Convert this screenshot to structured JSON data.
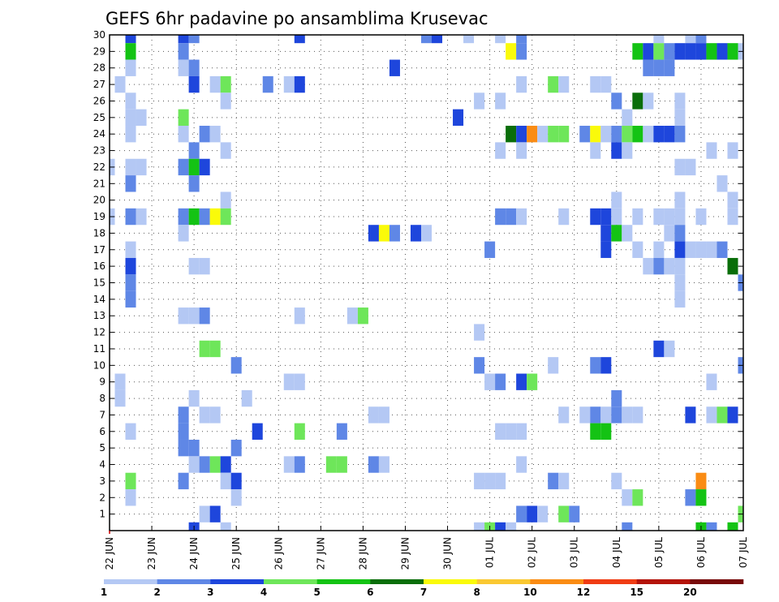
{
  "chart_data": {
    "type": "heatmap",
    "title": "GEFS 6hr padavine po ansamblima Krusevac",
    "xlabel": "",
    "ylabel": "",
    "x_tick_labels": [
      "22 JUN",
      "23 JUN",
      "24 JUN",
      "25 JUN",
      "26 JUN",
      "27 JUN",
      "28 JUN",
      "29 JUN",
      "30 JUN",
      "01 JUL",
      "02 JUL",
      "03 JUL",
      "04 JUL",
      "05 JUL",
      "06 JUL",
      "07 JUL"
    ],
    "y_tick_labels": [
      "1",
      "2",
      "3",
      "4",
      "5",
      "6",
      "7",
      "8",
      "9",
      "10",
      "11",
      "12",
      "13",
      "14",
      "15",
      "16",
      "17",
      "18",
      "19",
      "20",
      "21",
      "22",
      "23",
      "24",
      "25",
      "26",
      "27",
      "28",
      "29",
      "30"
    ],
    "x_range_steps": [
      0,
      60
    ],
    "y_range_members": [
      0,
      30
    ],
    "grid": true,
    "colorbar": {
      "labels": [
        "1",
        "2",
        "3",
        "4",
        "5",
        "6",
        "7",
        "8",
        "10",
        "12",
        "15",
        "20"
      ],
      "colors": [
        "#b4c8f4",
        "#5f87e6",
        "#1e46dc",
        "#6ee65a",
        "#14c314",
        "#0a6e0a",
        "#fafa0a",
        "#fac832",
        "#fa8c14",
        "#f03c14",
        "#b4140a",
        "#780a0a"
      ]
    },
    "cells": [
      [
        30,
        2,
        3
      ],
      [
        30,
        7,
        3
      ],
      [
        30,
        8,
        2
      ],
      [
        30,
        18,
        3
      ],
      [
        30,
        30,
        2
      ],
      [
        30,
        31,
        3
      ],
      [
        30,
        34,
        1
      ],
      [
        30,
        37,
        1
      ],
      [
        30,
        39,
        2
      ],
      [
        30,
        52,
        1
      ],
      [
        30,
        55,
        1
      ],
      [
        30,
        56,
        2
      ],
      [
        29,
        2,
        5
      ],
      [
        29,
        7,
        2
      ],
      [
        29,
        38,
        7
      ],
      [
        29,
        39,
        2
      ],
      [
        29,
        50,
        5
      ],
      [
        29,
        51,
        3
      ],
      [
        29,
        52,
        4
      ],
      [
        29,
        53,
        2
      ],
      [
        29,
        54,
        3
      ],
      [
        29,
        55,
        3
      ],
      [
        29,
        56,
        3
      ],
      [
        29,
        57,
        5
      ],
      [
        29,
        58,
        3
      ],
      [
        29,
        59,
        5
      ],
      [
        29,
        60,
        1
      ],
      [
        28,
        2,
        1
      ],
      [
        28,
        7,
        1
      ],
      [
        28,
        8,
        2
      ],
      [
        28,
        27,
        3
      ],
      [
        28,
        51,
        2
      ],
      [
        28,
        52,
        2
      ],
      [
        28,
        53,
        2
      ],
      [
        27,
        1,
        1
      ],
      [
        27,
        8,
        3
      ],
      [
        27,
        10,
        1
      ],
      [
        27,
        11,
        4
      ],
      [
        27,
        15,
        2
      ],
      [
        27,
        17,
        1
      ],
      [
        27,
        18,
        3
      ],
      [
        27,
        39,
        1
      ],
      [
        27,
        42,
        4
      ],
      [
        27,
        43,
        1
      ],
      [
        27,
        46,
        1
      ],
      [
        27,
        47,
        1
      ],
      [
        26,
        2,
        1
      ],
      [
        26,
        11,
        1
      ],
      [
        26,
        35,
        1
      ],
      [
        26,
        37,
        1
      ],
      [
        26,
        48,
        2
      ],
      [
        26,
        50,
        6
      ],
      [
        26,
        51,
        1
      ],
      [
        26,
        54,
        1
      ],
      [
        25,
        2,
        1
      ],
      [
        25,
        3,
        1
      ],
      [
        25,
        7,
        4
      ],
      [
        25,
        33,
        3
      ],
      [
        25,
        49,
        1
      ],
      [
        25,
        54,
        1
      ],
      [
        24,
        2,
        1
      ],
      [
        24,
        7,
        1
      ],
      [
        24,
        9,
        2
      ],
      [
        24,
        10,
        1
      ],
      [
        24,
        38,
        6
      ],
      [
        24,
        39,
        3
      ],
      [
        24,
        40,
        9
      ],
      [
        24,
        41,
        1
      ],
      [
        24,
        42,
        4
      ],
      [
        24,
        43,
        4
      ],
      [
        24,
        45,
        2
      ],
      [
        24,
        46,
        7
      ],
      [
        24,
        47,
        1
      ],
      [
        24,
        48,
        2
      ],
      [
        24,
        49,
        4
      ],
      [
        24,
        50,
        5
      ],
      [
        24,
        51,
        1
      ],
      [
        24,
        52,
        3
      ],
      [
        24,
        53,
        3
      ],
      [
        24,
        54,
        2
      ],
      [
        23,
        8,
        2
      ],
      [
        23,
        11,
        1
      ],
      [
        23,
        37,
        1
      ],
      [
        23,
        39,
        1
      ],
      [
        23,
        46,
        1
      ],
      [
        23,
        48,
        3
      ],
      [
        23,
        49,
        1
      ],
      [
        23,
        57,
        1
      ],
      [
        23,
        59,
        1
      ],
      [
        22,
        0,
        1
      ],
      [
        22,
        2,
        1
      ],
      [
        22,
        3,
        1
      ],
      [
        22,
        7,
        2
      ],
      [
        22,
        8,
        5
      ],
      [
        22,
        9,
        3
      ],
      [
        22,
        54,
        1
      ],
      [
        22,
        55,
        1
      ],
      [
        21,
        2,
        2
      ],
      [
        21,
        8,
        2
      ],
      [
        21,
        58,
        1
      ],
      [
        20,
        11,
        1
      ],
      [
        20,
        48,
        1
      ],
      [
        20,
        54,
        1
      ],
      [
        20,
        59,
        1
      ],
      [
        19,
        0,
        1
      ],
      [
        19,
        2,
        2
      ],
      [
        19,
        3,
        1
      ],
      [
        19,
        7,
        2
      ],
      [
        19,
        8,
        5
      ],
      [
        19,
        9,
        2
      ],
      [
        19,
        10,
        7
      ],
      [
        19,
        11,
        4
      ],
      [
        19,
        37,
        2
      ],
      [
        19,
        38,
        2
      ],
      [
        19,
        39,
        1
      ],
      [
        19,
        43,
        1
      ],
      [
        19,
        46,
        3
      ],
      [
        19,
        47,
        3
      ],
      [
        19,
        48,
        1
      ],
      [
        19,
        50,
        1
      ],
      [
        19,
        52,
        1
      ],
      [
        19,
        53,
        1
      ],
      [
        19,
        54,
        1
      ],
      [
        19,
        56,
        1
      ],
      [
        19,
        59,
        1
      ],
      [
        18,
        7,
        1
      ],
      [
        18,
        25,
        3
      ],
      [
        18,
        26,
        7
      ],
      [
        18,
        27,
        2
      ],
      [
        18,
        29,
        3
      ],
      [
        18,
        30,
        1
      ],
      [
        18,
        47,
        3
      ],
      [
        18,
        48,
        5
      ],
      [
        18,
        49,
        1
      ],
      [
        18,
        53,
        1
      ],
      [
        18,
        54,
        2
      ],
      [
        17,
        2,
        1
      ],
      [
        17,
        36,
        2
      ],
      [
        17,
        47,
        3
      ],
      [
        17,
        50,
        1
      ],
      [
        17,
        52,
        1
      ],
      [
        17,
        54,
        3
      ],
      [
        17,
        55,
        1
      ],
      [
        17,
        56,
        1
      ],
      [
        17,
        57,
        1
      ],
      [
        17,
        58,
        2
      ],
      [
        16,
        2,
        3
      ],
      [
        16,
        8,
        1
      ],
      [
        16,
        9,
        1
      ],
      [
        16,
        51,
        1
      ],
      [
        16,
        52,
        2
      ],
      [
        16,
        53,
        1
      ],
      [
        16,
        54,
        1
      ],
      [
        16,
        59,
        6
      ],
      [
        15,
        2,
        2
      ],
      [
        15,
        54,
        1
      ],
      [
        15,
        60,
        2
      ],
      [
        14,
        2,
        2
      ],
      [
        14,
        54,
        1
      ],
      [
        13,
        7,
        1
      ],
      [
        13,
        8,
        1
      ],
      [
        13,
        9,
        2
      ],
      [
        13,
        18,
        1
      ],
      [
        13,
        23,
        1
      ],
      [
        13,
        24,
        4
      ],
      [
        12,
        35,
        1
      ],
      [
        11,
        9,
        4
      ],
      [
        11,
        10,
        4
      ],
      [
        11,
        52,
        3
      ],
      [
        11,
        53,
        1
      ],
      [
        10,
        12,
        2
      ],
      [
        10,
        35,
        2
      ],
      [
        10,
        42,
        1
      ],
      [
        10,
        46,
        2
      ],
      [
        10,
        47,
        3
      ],
      [
        10,
        60,
        2
      ],
      [
        9,
        1,
        1
      ],
      [
        9,
        17,
        1
      ],
      [
        9,
        18,
        1
      ],
      [
        9,
        36,
        1
      ],
      [
        9,
        37,
        2
      ],
      [
        9,
        39,
        3
      ],
      [
        9,
        40,
        4
      ],
      [
        9,
        57,
        1
      ],
      [
        8,
        1,
        1
      ],
      [
        8,
        8,
        1
      ],
      [
        8,
        13,
        1
      ],
      [
        8,
        48,
        2
      ],
      [
        7,
        7,
        2
      ],
      [
        7,
        9,
        1
      ],
      [
        7,
        10,
        1
      ],
      [
        7,
        25,
        1
      ],
      [
        7,
        26,
        1
      ],
      [
        7,
        43,
        1
      ],
      [
        7,
        45,
        1
      ],
      [
        7,
        46,
        2
      ],
      [
        7,
        47,
        1
      ],
      [
        7,
        48,
        2
      ],
      [
        7,
        49,
        1
      ],
      [
        7,
        50,
        1
      ],
      [
        7,
        55,
        3
      ],
      [
        7,
        57,
        1
      ],
      [
        7,
        58,
        4
      ],
      [
        7,
        59,
        3
      ],
      [
        6,
        2,
        1
      ],
      [
        6,
        7,
        2
      ],
      [
        6,
        14,
        3
      ],
      [
        6,
        18,
        4
      ],
      [
        6,
        22,
        2
      ],
      [
        6,
        37,
        1
      ],
      [
        6,
        38,
        1
      ],
      [
        6,
        39,
        1
      ],
      [
        6,
        46,
        5
      ],
      [
        6,
        47,
        5
      ],
      [
        5,
        7,
        2
      ],
      [
        5,
        8,
        2
      ],
      [
        5,
        12,
        2
      ],
      [
        4,
        8,
        1
      ],
      [
        4,
        9,
        2
      ],
      [
        4,
        10,
        4
      ],
      [
        4,
        11,
        3
      ],
      [
        4,
        17,
        1
      ],
      [
        4,
        18,
        2
      ],
      [
        4,
        21,
        4
      ],
      [
        4,
        22,
        4
      ],
      [
        4,
        25,
        2
      ],
      [
        4,
        26,
        1
      ],
      [
        4,
        39,
        1
      ],
      [
        3,
        2,
        4
      ],
      [
        3,
        7,
        2
      ],
      [
        3,
        11,
        1
      ],
      [
        3,
        12,
        3
      ],
      [
        3,
        35,
        1
      ],
      [
        3,
        36,
        1
      ],
      [
        3,
        37,
        1
      ],
      [
        3,
        42,
        2
      ],
      [
        3,
        43,
        1
      ],
      [
        3,
        48,
        1
      ],
      [
        3,
        56,
        9
      ],
      [
        2,
        2,
        1
      ],
      [
        2,
        12,
        1
      ],
      [
        2,
        49,
        1
      ],
      [
        2,
        50,
        4
      ],
      [
        2,
        55,
        2
      ],
      [
        2,
        56,
        5
      ],
      [
        1,
        9,
        1
      ],
      [
        1,
        10,
        3
      ],
      [
        1,
        39,
        2
      ],
      [
        1,
        40,
        3
      ],
      [
        1,
        41,
        1
      ],
      [
        1,
        43,
        4
      ],
      [
        1,
        44,
        2
      ],
      [
        1,
        60,
        4
      ],
      [
        0,
        8,
        3
      ],
      [
        0,
        11,
        1
      ],
      [
        0,
        35,
        1
      ],
      [
        0,
        36,
        4
      ],
      [
        0,
        37,
        3
      ],
      [
        0,
        38,
        1
      ],
      [
        0,
        49,
        2
      ],
      [
        0,
        56,
        5
      ],
      [
        0,
        57,
        2
      ],
      [
        0,
        59,
        5
      ]
    ]
  }
}
